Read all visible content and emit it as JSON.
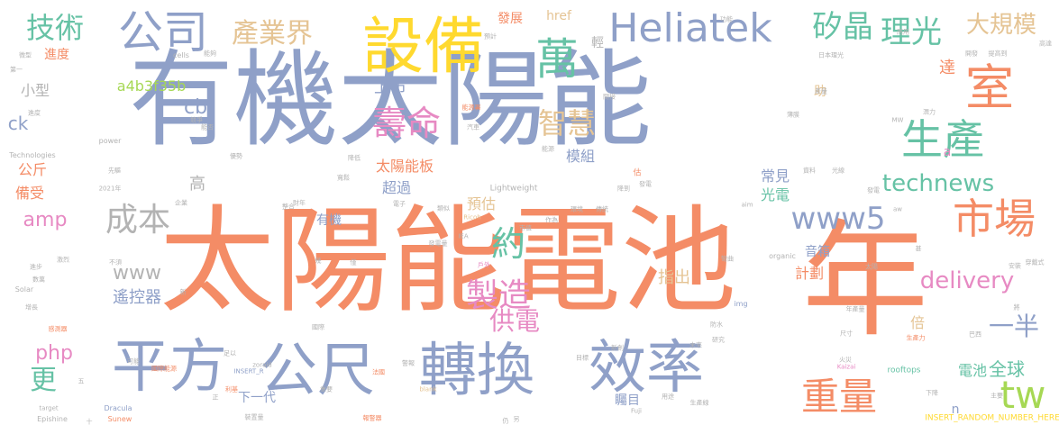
{
  "colors": {
    "blue": "#8fa0c8",
    "orange": "#f48c66",
    "green": "#66c2a5",
    "yellow": "#ffd92f",
    "lime": "#a6d854",
    "pink": "#e78ac3",
    "tan": "#e5c494",
    "gray": "#b3b3b3"
  },
  "words": [
    {
      "text": "有機太陽能",
      "color": "blue"
    },
    {
      "text": "太陽能電池",
      "color": "orange"
    },
    {
      "text": "年",
      "color": "orange"
    },
    {
      "text": "平方",
      "color": "blue"
    },
    {
      "text": "公尺",
      "color": "blue"
    },
    {
      "text": "轉換",
      "color": "blue"
    },
    {
      "text": "效率",
      "color": "blue"
    },
    {
      "text": "設備",
      "color": "yellow"
    },
    {
      "text": "公司",
      "color": "blue"
    },
    {
      "text": "萬",
      "color": "green"
    },
    {
      "text": "Heliatek",
      "color": "blue"
    },
    {
      "text": "室",
      "color": "orange"
    },
    {
      "text": "生產",
      "color": "green"
    },
    {
      "text": "市場",
      "color": "orange"
    },
    {
      "text": "重量",
      "color": "orange"
    },
    {
      "text": "tw",
      "color": "lime"
    },
    {
      "text": "技術",
      "color": "green"
    },
    {
      "text": "產業界",
      "color": "tan"
    },
    {
      "text": "矽晶",
      "color": "green"
    },
    {
      "text": "理光",
      "color": "green"
    },
    {
      "text": "大規模",
      "color": "tan"
    },
    {
      "text": "壽命",
      "color": "pink"
    },
    {
      "text": "智慧",
      "color": "tan"
    },
    {
      "text": "約",
      "color": "green"
    },
    {
      "text": "製造",
      "color": "pink"
    },
    {
      "text": "供電",
      "color": "pink"
    },
    {
      "text": "成本",
      "color": "gray"
    },
    {
      "text": "www5",
      "color": "blue"
    },
    {
      "text": "technews",
      "color": "green"
    },
    {
      "text": "delivery",
      "color": "pink"
    },
    {
      "text": "一半",
      "color": "blue"
    },
    {
      "text": "全球",
      "color": "green"
    },
    {
      "text": "更",
      "color": "green"
    },
    {
      "text": "php",
      "color": "pink"
    },
    {
      "text": "amp",
      "color": "pink"
    },
    {
      "text": "www",
      "color": "gray"
    },
    {
      "text": "遙控器",
      "color": "blue"
    },
    {
      "text": "上市",
      "color": "blue"
    },
    {
      "text": "小型",
      "color": "gray"
    },
    {
      "text": "a4b3f35b",
      "color": "lime"
    },
    {
      "text": "cb",
      "color": "blue"
    },
    {
      "text": "ck",
      "color": "blue"
    },
    {
      "text": "公斤",
      "color": "orange"
    },
    {
      "text": "備受",
      "color": "orange"
    },
    {
      "text": "進度",
      "color": "orange"
    },
    {
      "text": "太陽能板",
      "color": "orange"
    },
    {
      "text": "模組",
      "color": "blue"
    },
    {
      "text": "超過",
      "color": "blue"
    },
    {
      "text": "預估",
      "color": "tan"
    },
    {
      "text": "常見",
      "color": "blue"
    },
    {
      "text": "光電",
      "color": "green"
    },
    {
      "text": "計劃",
      "color": "orange"
    },
    {
      "text": "音箱",
      "color": "blue"
    },
    {
      "text": "指出",
      "color": "tan"
    },
    {
      "text": "倍",
      "color": "tan"
    },
    {
      "text": "電池",
      "color": "green"
    },
    {
      "text": "矚目",
      "color": "blue"
    },
    {
      "text": "下一代",
      "color": "blue"
    },
    {
      "text": "有機",
      "color": "blue"
    },
    {
      "text": "達",
      "color": "orange"
    },
    {
      "text": "助",
      "color": "tan"
    },
    {
      "text": "高",
      "color": "gray"
    },
    {
      "text": "發展",
      "color": "orange"
    },
    {
      "text": "href",
      "color": "tan"
    },
    {
      "text": "輕",
      "color": "gray"
    },
    {
      "text": "a",
      "color": "pink"
    },
    {
      "text": "n",
      "color": "blue"
    },
    {
      "text": "Lightweight",
      "color": "gray"
    },
    {
      "text": "INSERT_RANDOM_NUMBER_HERE",
      "color": "yellow"
    },
    {
      "text": "organic",
      "color": "gray"
    },
    {
      "text": "rooftops",
      "color": "green"
    },
    {
      "text": "power",
      "color": "gray"
    },
    {
      "text": "Technologies",
      "color": "gray"
    },
    {
      "text": "2021年",
      "color": "gray"
    },
    {
      "text": "cells",
      "color": "gray"
    },
    {
      "text": "Solar",
      "color": "gray"
    },
    {
      "text": "Epishine",
      "color": "gray"
    },
    {
      "text": "target",
      "color": "gray"
    },
    {
      "text": "Dracula",
      "color": "blue"
    },
    {
      "text": "Sunew",
      "color": "orange"
    },
    {
      "text": "blank",
      "color": "tan"
    },
    {
      "text": "INSERT_R",
      "color": "blue"
    },
    {
      "text": "Ricoh",
      "color": "tan"
    },
    {
      "text": "IEA",
      "color": "gray"
    },
    {
      "text": "Fuji",
      "color": "gray"
    },
    {
      "text": "MW",
      "color": "gray"
    },
    {
      "text": "img",
      "color": "blue"
    },
    {
      "text": "aw",
      "color": "gray"
    },
    {
      "text": "aim",
      "color": "gray"
    },
    {
      "text": "Kaizai",
      "color": "pink"
    },
    {
      "text": "zoraid",
      "color": "gray"
    },
    {
      "text": "第一",
      "color": "gray"
    },
    {
      "text": "微型",
      "color": "gray"
    },
    {
      "text": "進度",
      "color": "gray"
    },
    {
      "text": "進步",
      "color": "gray"
    },
    {
      "text": "激烈",
      "color": "gray"
    },
    {
      "text": "數萬",
      "color": "gray"
    },
    {
      "text": "增長",
      "color": "gray"
    },
    {
      "text": "感測器",
      "color": "orange"
    },
    {
      "text": "國際",
      "color": "gray"
    },
    {
      "text": "國際能源",
      "color": "orange"
    },
    {
      "text": "能源署",
      "color": "orange"
    },
    {
      "text": "警報",
      "color": "gray"
    },
    {
      "text": "報警器",
      "color": "orange"
    },
    {
      "text": "裝置量",
      "color": "gray"
    },
    {
      "text": "利基",
      "color": "orange"
    },
    {
      "text": "法國",
      "color": "orange"
    },
    {
      "text": "戶外",
      "color": "pink"
    },
    {
      "text": "發電量",
      "color": "gray"
    },
    {
      "text": "研究",
      "color": "gray"
    },
    {
      "text": "新創",
      "color": "gray"
    },
    {
      "text": "目標",
      "color": "gray"
    },
    {
      "text": "用途",
      "color": "gray"
    },
    {
      "text": "生產力",
      "color": "orange"
    },
    {
      "text": "巴西",
      "color": "gray"
    },
    {
      "text": "火災",
      "color": "gray"
    },
    {
      "text": "年產量",
      "color": "gray"
    },
    {
      "text": "發電",
      "color": "gray"
    },
    {
      "text": "提高到",
      "color": "gray"
    },
    {
      "text": "高達",
      "color": "gray"
    },
    {
      "text": "穿戴式",
      "color": "gray"
    },
    {
      "text": "日本理光",
      "color": "gray"
    },
    {
      "text": "產量",
      "color": "gray"
    },
    {
      "text": "光線",
      "color": "gray"
    },
    {
      "text": "資料",
      "color": "gray"
    },
    {
      "text": "薄膜",
      "color": "gray"
    },
    {
      "text": "潛力",
      "color": "gray"
    },
    {
      "text": "太陽",
      "color": "gray"
    },
    {
      "text": "降低",
      "color": "gray"
    },
    {
      "text": "汽車",
      "color": "gray"
    },
    {
      "text": "電子",
      "color": "gray"
    },
    {
      "text": "財年",
      "color": "gray"
    },
    {
      "text": "類似",
      "color": "gray"
    },
    {
      "text": "市值",
      "color": "gray"
    },
    {
      "text": "降到",
      "color": "gray"
    },
    {
      "text": "先驅",
      "color": "gray"
    },
    {
      "text": "能源",
      "color": "gray"
    },
    {
      "text": "發電",
      "color": "gray"
    },
    {
      "text": "能否",
      "color": "gray"
    },
    {
      "text": "寬鬆",
      "color": "gray"
    },
    {
      "text": "估",
      "color": "orange"
    },
    {
      "text": "企業",
      "color": "gray"
    },
    {
      "text": "優勢",
      "color": "gray"
    },
    {
      "text": "整合",
      "color": "gray"
    },
    {
      "text": "環境",
      "color": "gray"
    },
    {
      "text": "作為",
      "color": "gray"
    },
    {
      "text": "傳統",
      "color": "gray"
    },
    {
      "text": "競爭",
      "color": "gray"
    },
    {
      "text": "足以",
      "color": "gray"
    },
    {
      "text": "能夠",
      "color": "gray"
    },
    {
      "text": "應用",
      "color": "gray"
    },
    {
      "text": "開發",
      "color": "gray"
    },
    {
      "text": "間接",
      "color": "gray"
    },
    {
      "text": "功能",
      "color": "gray"
    },
    {
      "text": "預計",
      "color": "gray"
    },
    {
      "text": "不須",
      "color": "gray"
    },
    {
      "text": "可能",
      "color": "gray"
    },
    {
      "text": "重要",
      "color": "gray"
    },
    {
      "text": "下降",
      "color": "gray"
    },
    {
      "text": "安裝",
      "color": "gray"
    },
    {
      "text": "主要",
      "color": "gray"
    },
    {
      "text": "尺寸",
      "color": "gray"
    },
    {
      "text": "未來",
      "color": "gray"
    },
    {
      "text": "彎曲",
      "color": "gray"
    },
    {
      "text": "防水",
      "color": "gray"
    },
    {
      "text": "生產線",
      "color": "gray"
    },
    {
      "text": "正",
      "color": "gray"
    },
    {
      "text": "十",
      "color": "gray"
    },
    {
      "text": "五",
      "color": "gray"
    },
    {
      "text": "仍",
      "color": "gray"
    },
    {
      "text": "另",
      "color": "gray"
    },
    {
      "text": "將",
      "color": "gray"
    },
    {
      "text": "甚",
      "color": "gray"
    },
    {
      "text": "僅",
      "color": "gray"
    },
    {
      "text": "幾",
      "color": "gray"
    },
    {
      "text": "新",
      "color": "gray"
    }
  ]
}
